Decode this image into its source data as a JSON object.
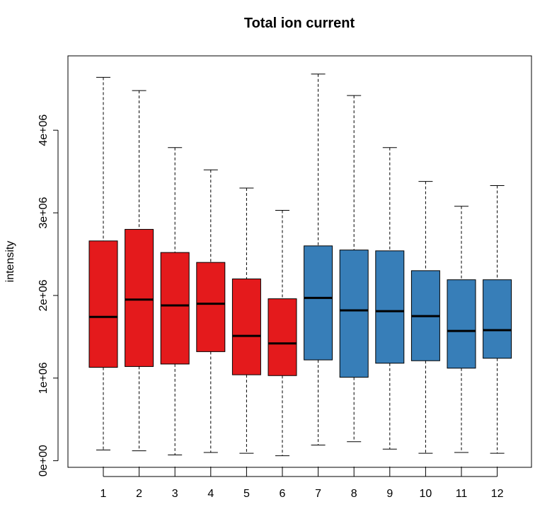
{
  "chart_data": {
    "type": "boxplot",
    "title": "Total ion current",
    "xlabel": "",
    "ylabel": "intensity",
    "ylim": [
      -80000,
      4900000
    ],
    "yticks": [
      0,
      1000000,
      2000000,
      3000000,
      4000000
    ],
    "ytick_labels": [
      "0e+00",
      "1e+06",
      "2e+06",
      "3e+06",
      "4e+06"
    ],
    "categories": [
      "1",
      "2",
      "3",
      "4",
      "5",
      "6",
      "7",
      "8",
      "9",
      "10",
      "11",
      "12"
    ],
    "colors": [
      "#e41a1c",
      "#e41a1c",
      "#e41a1c",
      "#e41a1c",
      "#e41a1c",
      "#e41a1c",
      "#377eb8",
      "#377eb8",
      "#377eb8",
      "#377eb8",
      "#377eb8",
      "#377eb8"
    ],
    "boxes": [
      {
        "min": 130000,
        "q1": 1130000,
        "median": 1740000,
        "q3": 2660000,
        "max": 4640000
      },
      {
        "min": 120000,
        "q1": 1140000,
        "median": 1950000,
        "q3": 2800000,
        "max": 4480000
      },
      {
        "min": 70000,
        "q1": 1170000,
        "median": 1880000,
        "q3": 2520000,
        "max": 3790000
      },
      {
        "min": 100000,
        "q1": 1320000,
        "median": 1900000,
        "q3": 2400000,
        "max": 3520000
      },
      {
        "min": 90000,
        "q1": 1040000,
        "median": 1510000,
        "q3": 2200000,
        "max": 3300000
      },
      {
        "min": 60000,
        "q1": 1030000,
        "median": 1420000,
        "q3": 1960000,
        "max": 3030000
      },
      {
        "min": 190000,
        "q1": 1220000,
        "median": 1970000,
        "q3": 2600000,
        "max": 4680000
      },
      {
        "min": 230000,
        "q1": 1010000,
        "median": 1820000,
        "q3": 2550000,
        "max": 4420000
      },
      {
        "min": 140000,
        "q1": 1180000,
        "median": 1810000,
        "q3": 2540000,
        "max": 3790000
      },
      {
        "min": 90000,
        "q1": 1210000,
        "median": 1750000,
        "q3": 2300000,
        "max": 3380000
      },
      {
        "min": 100000,
        "q1": 1120000,
        "median": 1570000,
        "q3": 2190000,
        "max": 3080000
      },
      {
        "min": 90000,
        "q1": 1240000,
        "median": 1580000,
        "q3": 2190000,
        "max": 3330000
      }
    ],
    "grid": false,
    "legend": "none"
  }
}
